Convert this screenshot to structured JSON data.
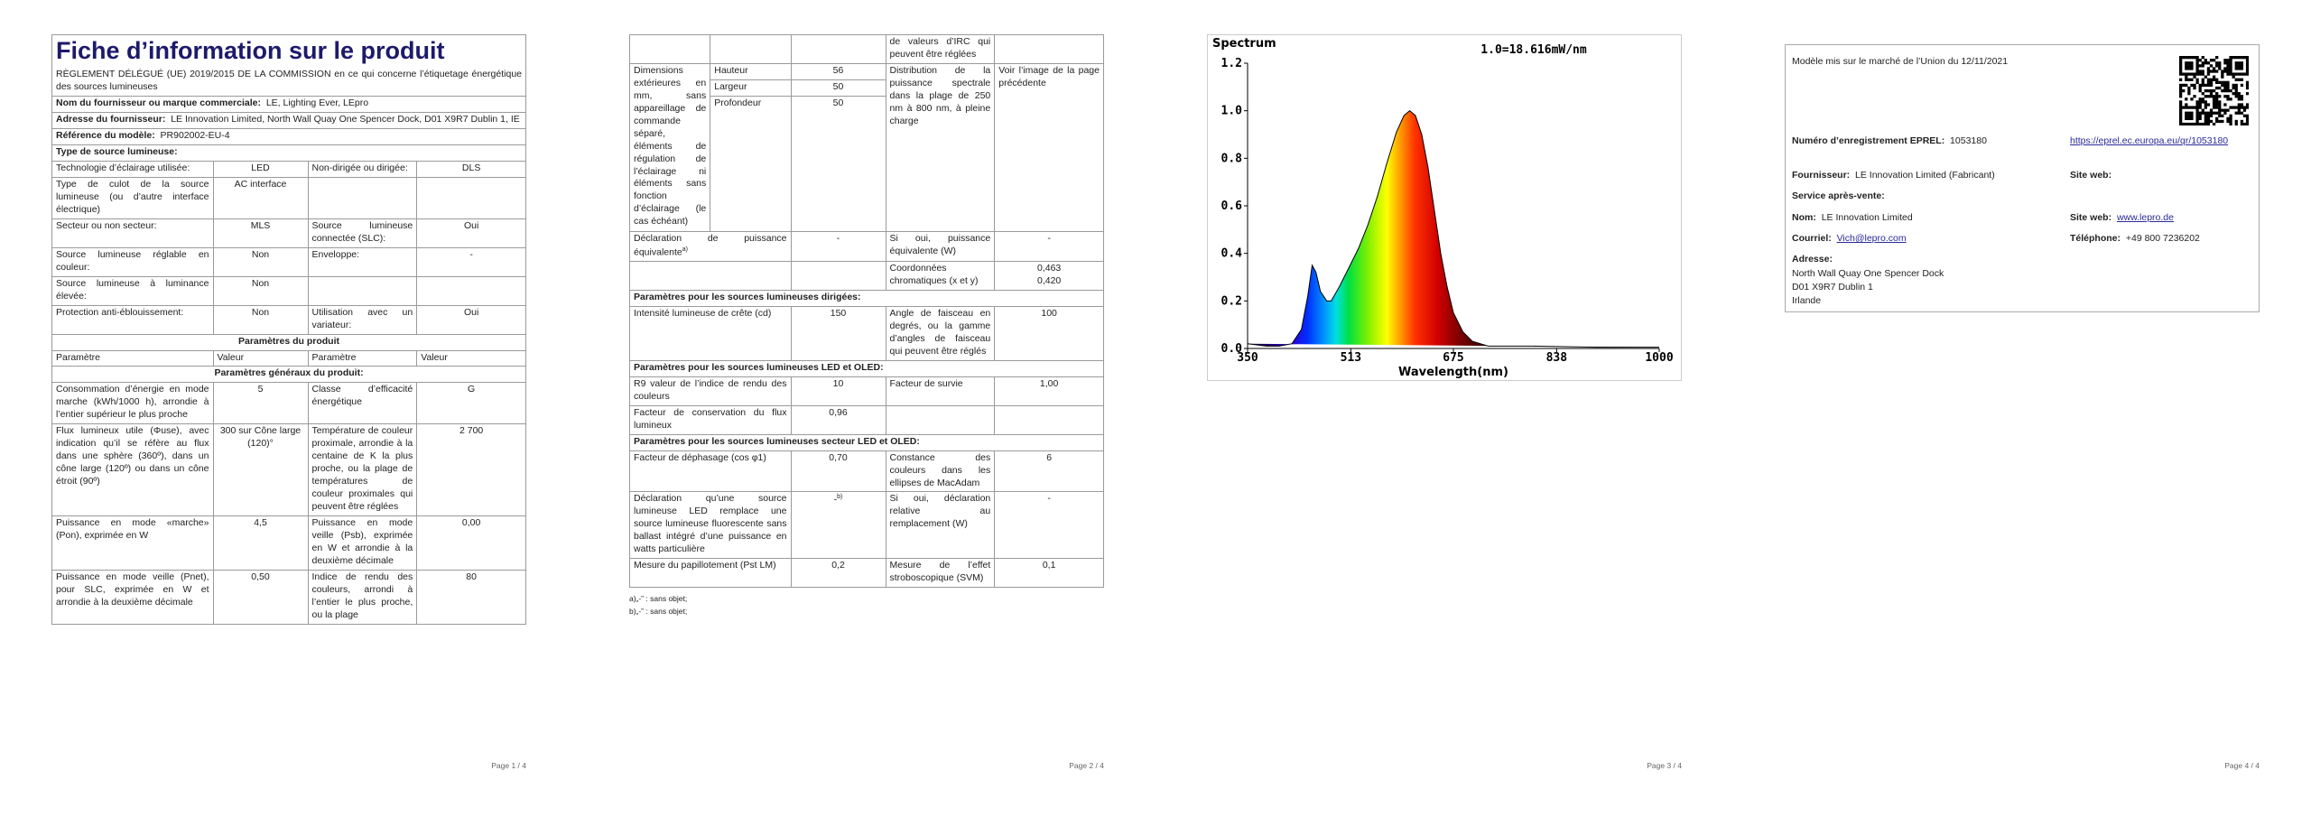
{
  "page1": {
    "title": "Fiche d’information sur le produit",
    "regulation": "RÈGLEMENT DÉLÉGUÉ (UE) 2019/2015 DE LA COMMISSION en ce qui concerne l’étiquetage énergétique des sources lumineuses",
    "supplier": {
      "label": "Nom du fournisseur ou marque commerciale:",
      "value": "LE, Lighting Ever, LEpro"
    },
    "address": {
      "label": "Adresse du fournisseur:",
      "value": "LE Innovation Limited, North Wall Quay One Spencer Dock, D01 X9R7 Dublin 1, IE"
    },
    "model": {
      "label": "Référence du modèle:",
      "value": "PR902002-EU-4"
    },
    "source_type": "Type de source lumineuse:",
    "lamp_rows": [
      [
        "Technologie d’éclairage utilisée:",
        "LED",
        "Non-dirigée ou dirigée:",
        "DLS"
      ],
      [
        "Type de culot de la source lumineuse (ou d’autre interface électrique)",
        "AC interface"
      ],
      [
        "Secteur ou non secteur:",
        "MLS",
        "Source lumineuse connectée (SLC):",
        "Oui"
      ],
      [
        "Source lumineuse réglable en couleur:",
        "Non",
        "Enveloppe:",
        "-"
      ],
      [
        "Source lumineuse à luminance élevée:",
        "Non"
      ],
      [
        "Protection anti-éblouissement:",
        "Non",
        "Utilisation avec un variateur:",
        "Oui"
      ]
    ],
    "product_parameters": "Paramètres du produit",
    "column_headers": [
      "Paramètre",
      "Valeur",
      "Paramètre",
      "Valeur"
    ],
    "general_parameters": "Paramètres généraux du produit:",
    "general_rows": [
      [
        "Consommation d’énergie en mode marche (kWh/1000 h), arrondie à l’entier supérieur le plus proche",
        "5",
        "Classe d’efficacité énergétique",
        "G"
      ],
      [
        "Flux lumineux utile (Φuse), avec indication qu’il se réfère au flux dans une sphère (360º), dans un cône large (120º) ou dans un cône étroit (90º)",
        "300 sur Cône large (120)°",
        "Température de couleur proximale, arrondie à la centaine de K la plus proche, ou la plage de températures de couleur proximales qui peuvent être réglées",
        "2 700"
      ],
      [
        "Puissance en mode «marche» (Pon), exprimée en W",
        "4,5",
        "Puissance en mode veille (Psb), exprimée en W et arrondie à la deuxième décimale",
        "0,00"
      ],
      [
        "Puissance en mode veille (Pnet), pour SLC, exprimée en W et arrondie à la deuxième décimale",
        "0,50",
        "Indice de rendu des couleurs, arrondi à l’entier le plus proche, ou la plage",
        "80"
      ]
    ]
  },
  "page2": {
    "continuation": "de valeurs d’IRC qui peuvent être réglées",
    "dimensions": {
      "label": "Dimensions extérieures en mm, sans appareillage de commande séparé, éléments de régulation de l’éclairage ni éléments sans fonction d’éclairage (le cas échéant)",
      "items": [
        [
          "Hauteur",
          "56"
        ],
        [
          "Largeur",
          "50"
        ],
        [
          "Profondeur",
          "50"
        ]
      ],
      "spectral_label": "Distribution de la puissance spectrale dans la plage de 250 nm à 800 nm, à pleine charge",
      "spectral_value": "Voir l’image de la page précédente"
    },
    "equivalent": {
      "label": "Déclaration de puissance équivalente",
      "note": "a)",
      "value": "-",
      "param": "Si oui, puissance équivalente (W)",
      "param_value": "-"
    },
    "chromaticity": {
      "label": "Coordonnées chromatiques (x et y)",
      "values": [
        "0,463",
        "0,420"
      ]
    },
    "sections": [
      {
        "title": "Paramètres pour les sources lumineuses dirigées:",
        "rows": [
          [
            "Intensité lumineuse de crête (cd)",
            "150",
            "Angle de faisceau en degrés, ou la gamme d’angles de faisceau qui peuvent être réglés",
            "100"
          ]
        ]
      },
      {
        "title": "Paramètres pour les sources lumineuses LED et OLED:",
        "rows": [
          [
            "R9 valeur de l’indice de rendu des couleurs",
            "10",
            "Facteur de survie",
            "1,00"
          ],
          [
            "Facteur de conservation du flux lumineux",
            "0,96"
          ]
        ]
      }
    ],
    "mains": {
      "title": "Paramètres pour les sources lumineuses secteur LED et OLED:",
      "phase": [
        "Facteur de déphasage (cos φ1)",
        "0,70",
        "Constance des couleurs dans les ellipses de MacAdam",
        "6"
      ],
      "replacement": {
        "label": "Déclaration qu’une source lumineuse LED remplace une source lumineuse fluorescente sans ballast intégré d’une puissance en watts particulière",
        "value": "-",
        "note": "b)",
        "param": "Si oui, déclaration relative au remplacement (W)",
        "param_value": "-"
      },
      "flicker": [
        "Mesure du papillotement (Pst LM)",
        "0,2",
        "Mesure de l’effet stroboscopique (SVM)",
        "0,1"
      ]
    },
    "footnotes": [
      "a)„-‟ : sans objet;",
      "b)„-‟ : sans objet;"
    ]
  },
  "chart_data": {
    "type": "area",
    "title": "Spectrum",
    "annotation": "1.0=18.616mW/nm",
    "x_label": "Wavelength(nm)",
    "x": [
      350,
      380,
      400,
      420,
      435,
      445,
      452,
      458,
      465,
      475,
      482,
      495,
      510,
      525,
      540,
      555,
      570,
      585,
      597,
      606,
      615,
      625,
      635,
      645,
      655,
      665,
      675,
      690,
      705,
      730,
      800,
      900,
      1000
    ],
    "values": [
      0.02,
      0.01,
      0.01,
      0.02,
      0.08,
      0.22,
      0.35,
      0.32,
      0.24,
      0.2,
      0.2,
      0.26,
      0.34,
      0.42,
      0.52,
      0.64,
      0.78,
      0.91,
      0.98,
      1.0,
      0.98,
      0.9,
      0.76,
      0.58,
      0.4,
      0.26,
      0.15,
      0.07,
      0.03,
      0.01,
      0.01,
      0.005,
      0.005
    ],
    "xlim": [
      350,
      1000
    ],
    "ylim": [
      0,
      1.2
    ],
    "xticks": [
      350,
      513,
      675,
      838,
      1000
    ],
    "yticks": [
      {
        "value": 0,
        "label": "0.0"
      },
      0.2,
      0.4,
      0.6,
      0.8,
      {
        "value": 1,
        "label": "1.0"
      },
      1.2
    ],
    "grid": false
  },
  "page4": {
    "market_date": "Modèle mis sur le marché de l’Union du 12/11/2021",
    "eprel": {
      "label": "Numéro d’enregistrement EPREL:",
      "value": "1053180",
      "link": "https://eprel.ec.europa.eu/qr/1053180"
    },
    "supplier": {
      "label": "Fournisseur:",
      "value": "LE Innovation Limited (Fabricant)",
      "web_label": "Site web:"
    },
    "service": "Service après-vente:",
    "name": {
      "label": "Nom:",
      "value": "LE Innovation Limited",
      "web_label": "Site web:",
      "web": "www.lepro.de"
    },
    "email": {
      "label": "Courriel:",
      "value": "Vich@lepro.com",
      "phone_label": "Téléphone:",
      "phone": "+49 800 7236202"
    },
    "address": {
      "label": "Adresse:",
      "lines": [
        "North Wall Quay One Spencer Dock",
        "D01 X9R7 Dublin 1",
        "Irlande"
      ]
    }
  },
  "footers": [
    "Page 1 / 4",
    "Page 2 / 4",
    "Page 3 / 4",
    "Page 4 / 4"
  ]
}
